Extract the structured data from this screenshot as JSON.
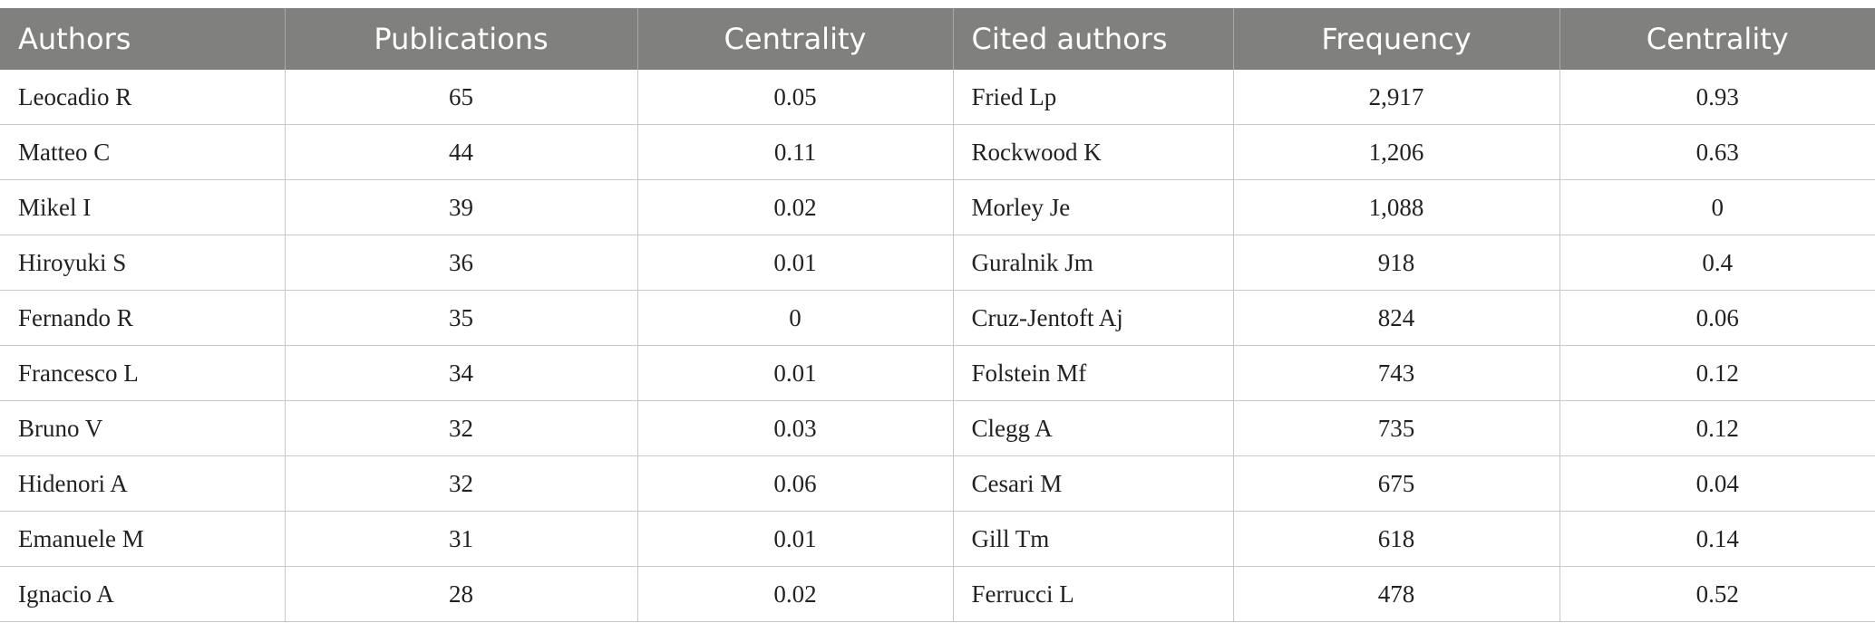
{
  "table": {
    "header": [
      "Authors",
      "Publications",
      "Centrality",
      "Cited authors",
      "Frequency",
      "Centrality"
    ],
    "rows": [
      [
        "Leocadio R",
        "65",
        "0.05",
        "Fried Lp",
        "2,917",
        "0.93"
      ],
      [
        "Matteo C",
        "44",
        "0.11",
        "Rockwood K",
        "1,206",
        "0.63"
      ],
      [
        "Mikel I",
        "39",
        "0.02",
        "Morley Je",
        "1,088",
        "0"
      ],
      [
        "Hiroyuki S",
        "36",
        "0.01",
        "Guralnik Jm",
        "918",
        "0.4"
      ],
      [
        "Fernando R",
        "35",
        "0",
        "Cruz-Jentoft Aj",
        "824",
        "0.06"
      ],
      [
        "Francesco L",
        "34",
        "0.01",
        "Folstein Mf",
        "743",
        "0.12"
      ],
      [
        "Bruno V",
        "32",
        "0.03",
        "Clegg A",
        "735",
        "0.12"
      ],
      [
        "Hidenori A",
        "32",
        "0.06",
        "Cesari M",
        "675",
        "0.04"
      ],
      [
        "Emanuele M",
        "31",
        "0.01",
        "Gill Tm",
        "618",
        "0.14"
      ],
      [
        "Ignacio A",
        "28",
        "0.02",
        "Ferrucci L",
        "478",
        "0.52"
      ]
    ]
  }
}
